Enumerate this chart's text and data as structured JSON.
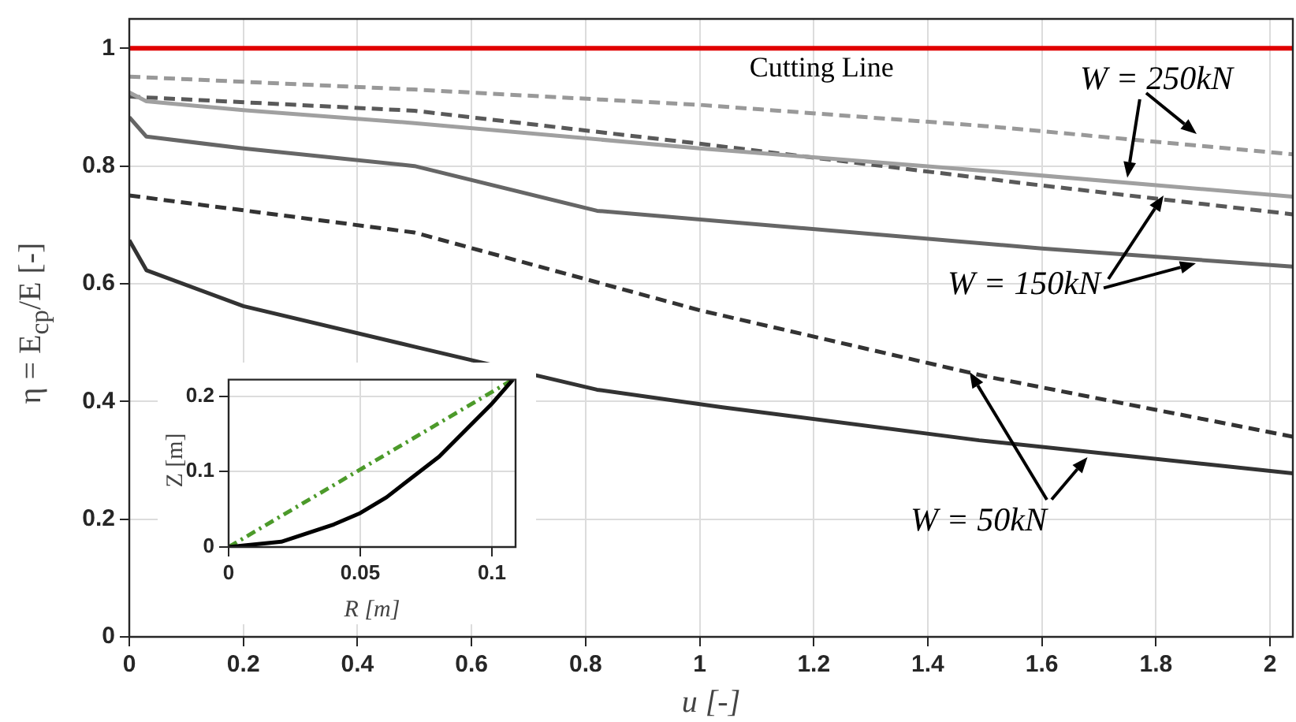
{
  "chart_data": [
    {
      "type": "line",
      "xlabel": "u [-]",
      "ylabel": "η = E$_{cp}$/E [-]",
      "xlim": [
        0,
        2.04
      ],
      "xticks": [
        0,
        0.2,
        0.4,
        0.6,
        0.8,
        1,
        1.2,
        1.4,
        1.6,
        1.8,
        2
      ],
      "ylim": [
        0,
        1.05
      ],
      "yticks": [
        0,
        0.2,
        0.4,
        0.6,
        0.8,
        1
      ],
      "grid": true,
      "legend": false,
      "marker": "none",
      "series": [
        {
          "color": "#999999",
          "line_style": "dashed",
          "x": [
            0,
            0.5,
            1,
            1.5,
            2.04
          ],
          "values": [
            0.952,
            0.93,
            0.904,
            0.868,
            0.82
          ]
        },
        {
          "color": "#a0a0a0",
          "line_style": "solid",
          "x": [
            0,
            0.03,
            0.2,
            0.5,
            1,
            1.5,
            2.04
          ],
          "values": [
            0.925,
            0.91,
            0.895,
            0.873,
            0.83,
            0.792,
            0.748
          ]
        },
        {
          "color": "#595959",
          "line_style": "dashed",
          "x": [
            0,
            0.5,
            1,
            1.6,
            2.04
          ],
          "values": [
            0.918,
            0.894,
            0.838,
            0.767,
            0.718
          ]
        },
        {
          "color": "#666666",
          "line_style": "solid",
          "x": [
            0,
            0.03,
            0.2,
            0.5,
            0.82,
            1.6,
            2.04
          ],
          "values": [
            0.883,
            0.85,
            0.83,
            0.8,
            0.724,
            0.66,
            0.629
          ]
        },
        {
          "color": "#333333",
          "line_style": "dashed",
          "x": [
            0,
            0.5,
            1,
            1.5,
            2.04
          ],
          "values": [
            0.75,
            0.687,
            0.555,
            0.443,
            0.34
          ]
        },
        {
          "color": "#333333",
          "line_style": "solid",
          "x": [
            0,
            0.03,
            0.2,
            0.5,
            0.82,
            1.04,
            1.49,
            2.04
          ],
          "values": [
            0.674,
            0.623,
            0.562,
            0.493,
            0.42,
            0.39,
            0.334,
            0.278
          ]
        }
      ],
      "ref_lines": [
        {
          "axis": "y",
          "value": 1,
          "label": "Cutting Line",
          "color": "#e00000"
        }
      ],
      "annotations": [
        {
          "text": "W = 250kN",
          "x": 1.75,
          "y": 0.78
        },
        {
          "text": "W = 150kN",
          "x": 1.87,
          "y": 0.634
        },
        {
          "text": "W = 50kN",
          "x": 1.68,
          "y": 0.305
        }
      ]
    },
    {
      "type": "line",
      "xlabel": "R [m]",
      "ylabel": "Z [m]",
      "xlim": [
        0,
        0.109
      ],
      "xticks": [
        0,
        0.05,
        0.1
      ],
      "ylim": [
        0,
        0.222
      ],
      "yticks": [
        0,
        0.1,
        0.2
      ],
      "grid": true,
      "legend": false,
      "marker": "none",
      "series": [
        {
          "color": "#000000",
          "line_style": "solid",
          "x": [
            0,
            0.02,
            0.04,
            0.05,
            0.06,
            0.08,
            0.1,
            0.108
          ],
          "values": [
            0,
            0.007,
            0.03,
            0.045,
            0.066,
            0.12,
            0.19,
            0.222
          ]
        },
        {
          "color": "#4c9a2a",
          "line_style": "dashed",
          "x": [
            0,
            0.108
          ],
          "values": [
            0,
            0.222
          ]
        }
      ]
    }
  ]
}
